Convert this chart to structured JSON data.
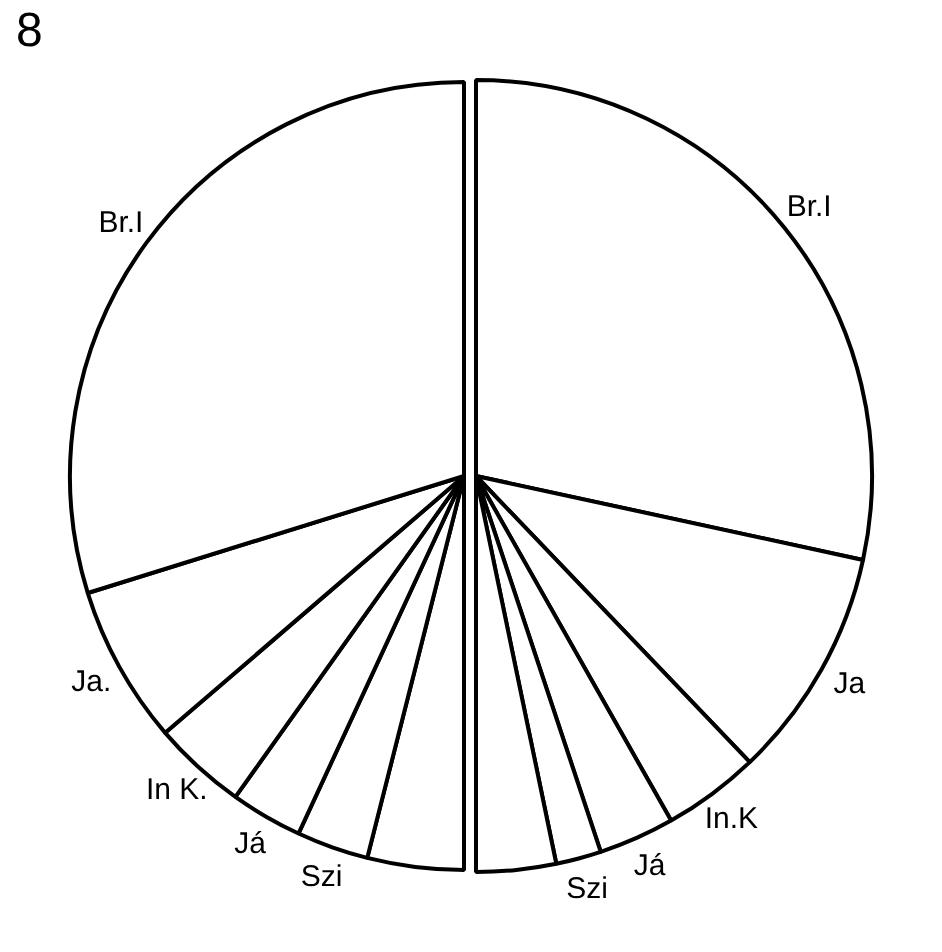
{
  "chart_data": [
    {
      "type": "pie",
      "annotations": [
        "8"
      ],
      "categories": [
        "Br.I",
        "Ja.",
        "In K.",
        "Já",
        "Szi",
        null
      ],
      "values": [
        59.6,
        13.0,
        7.7,
        5.9,
        5.9,
        7.9
      ],
      "colors": [
        "#ffffff",
        "#ffffff",
        "#ffffff",
        "#ffffff",
        "#ffffff",
        "#ffffff"
      ],
      "legend": false
    },
    {
      "type": "pie",
      "categories": [
        "Br.I",
        "Ja",
        "In.K",
        "Já",
        "Szi",
        null
      ],
      "values": [
        56.8,
        18.9,
        7.9,
        6.2,
        3.7,
        6.5
      ],
      "colors": [
        "#ffffff",
        "#ffffff",
        "#ffffff",
        "#ffffff",
        "#ffffff",
        "#ffffff"
      ],
      "legend": false
    }
  ]
}
